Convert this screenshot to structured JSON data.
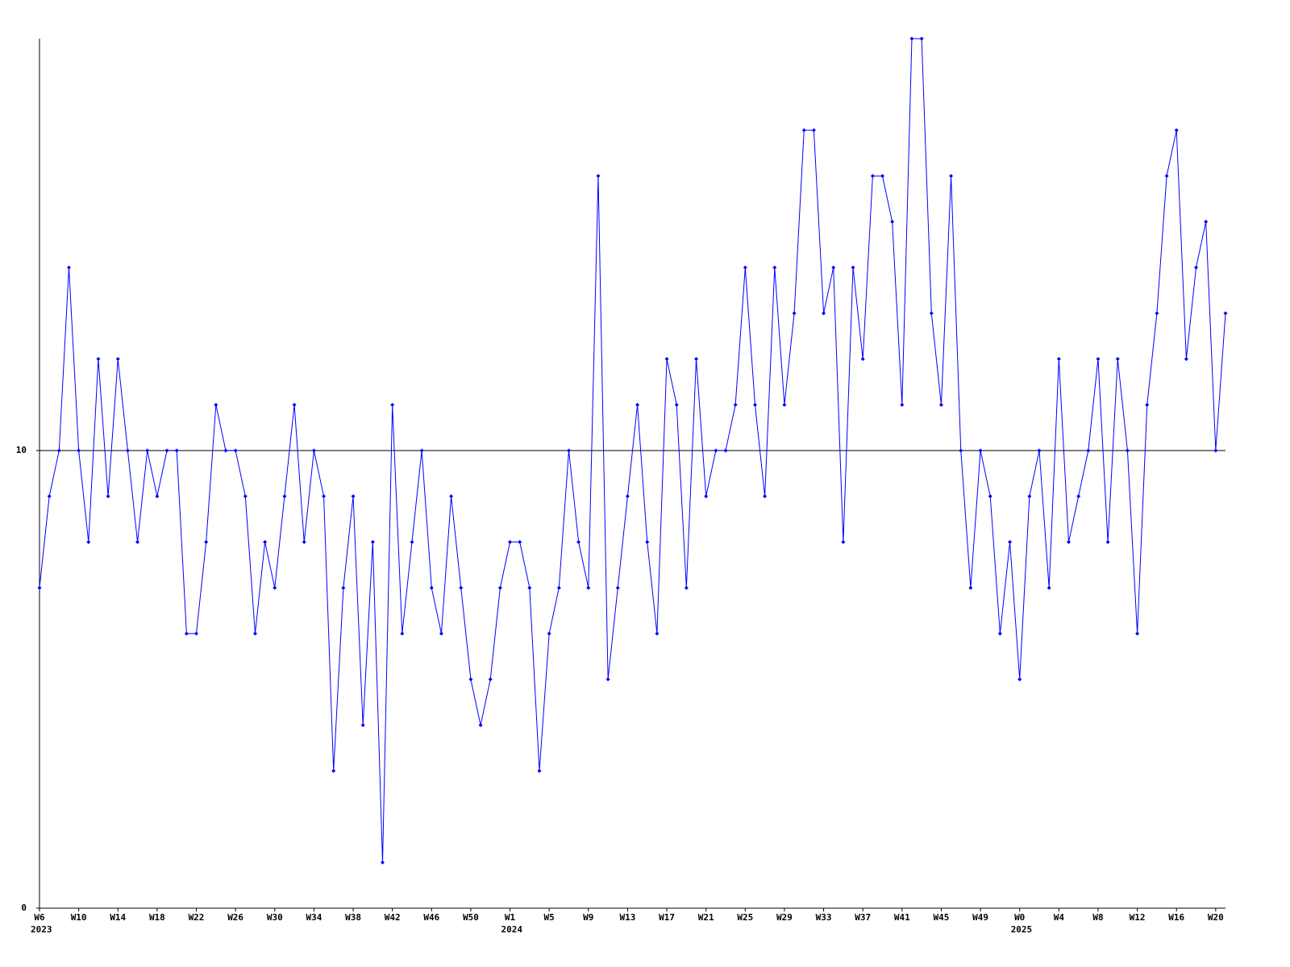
{
  "chart_data": {
    "type": "line",
    "color": "#0000ff",
    "refline_color": "#000000",
    "categories": [
      "W6",
      null,
      null,
      null,
      "W10",
      null,
      null,
      null,
      "W14",
      null,
      null,
      null,
      "W18",
      null,
      null,
      null,
      "W22",
      null,
      null,
      null,
      "W26",
      null,
      null,
      null,
      "W30",
      null,
      null,
      null,
      "W34",
      null,
      null,
      null,
      "W38",
      null,
      null,
      null,
      "W42",
      null,
      null,
      null,
      "W46",
      null,
      null,
      null,
      "W50",
      null,
      null,
      null,
      "W1",
      null,
      null,
      null,
      "W5",
      null,
      null,
      null,
      "W9",
      null,
      null,
      null,
      "W13",
      null,
      null,
      null,
      "W17",
      null,
      null,
      null,
      "W21",
      null,
      null,
      null,
      "W25",
      null,
      null,
      null,
      "W29",
      null,
      null,
      null,
      "W33",
      null,
      null,
      null,
      "W37",
      null,
      null,
      null,
      "W41",
      null,
      null,
      null,
      "W45",
      null,
      null,
      null,
      "W49",
      null,
      null,
      null,
      "W0",
      null,
      null,
      null,
      "W4",
      null,
      null,
      null,
      "W8",
      null,
      null,
      null,
      "W12",
      null,
      null,
      null,
      "W16",
      null,
      null,
      null,
      "W20",
      null
    ],
    "category_years": [
      "2023",
      null,
      null,
      null,
      null,
      null,
      null,
      null,
      null,
      null,
      null,
      null,
      null,
      null,
      null,
      null,
      null,
      null,
      null,
      null,
      null,
      null,
      null,
      null,
      null,
      null,
      null,
      null,
      null,
      null,
      null,
      null,
      null,
      null,
      null,
      null,
      null,
      null,
      null,
      null,
      null,
      null,
      null,
      null,
      null,
      null,
      null,
      null,
      "2024",
      null,
      null,
      null,
      null,
      null,
      null,
      null,
      null,
      null,
      null,
      null,
      null,
      null,
      null,
      null,
      null,
      null,
      null,
      null,
      null,
      null,
      null,
      null,
      null,
      null,
      null,
      null,
      null,
      null,
      null,
      null,
      null,
      null,
      null,
      null,
      null,
      null,
      null,
      null,
      null,
      null,
      null,
      null,
      null,
      null,
      null,
      null,
      null,
      null,
      null,
      null,
      "2025",
      null,
      null,
      null,
      null,
      null,
      null,
      null,
      null,
      null,
      null,
      null,
      null,
      null,
      null,
      null,
      null,
      null,
      null,
      null,
      null,
      null
    ],
    "values": [
      7,
      9,
      10,
      14,
      10,
      8,
      12,
      9,
      12,
      10,
      8,
      10,
      9,
      10,
      10,
      6,
      6,
      8,
      11,
      10,
      10,
      9,
      6,
      8,
      7,
      9,
      11,
      8,
      10,
      9,
      3,
      7,
      9,
      4,
      8,
      1,
      11,
      6,
      8,
      10,
      7,
      6,
      9,
      7,
      5,
      4,
      5,
      7,
      8,
      8,
      7,
      3,
      6,
      7,
      10,
      8,
      7,
      16,
      5,
      7,
      9,
      11,
      8,
      6,
      12,
      11,
      7,
      12,
      9,
      10,
      10,
      11,
      14,
      11,
      9,
      14,
      11,
      13,
      17,
      17,
      13,
      14,
      8,
      14,
      12,
      16,
      16,
      15,
      11,
      19,
      19,
      13,
      11,
      16,
      10,
      7,
      10,
      9,
      6,
      8,
      5,
      9,
      10,
      7,
      12,
      8,
      9,
      10,
      12,
      8,
      12,
      10,
      6,
      11,
      13,
      16,
      17,
      12,
      14,
      15,
      10,
      13
    ],
    "ylim": [
      0,
      19
    ],
    "yticks": [
      0,
      10
    ],
    "grid": true
  }
}
